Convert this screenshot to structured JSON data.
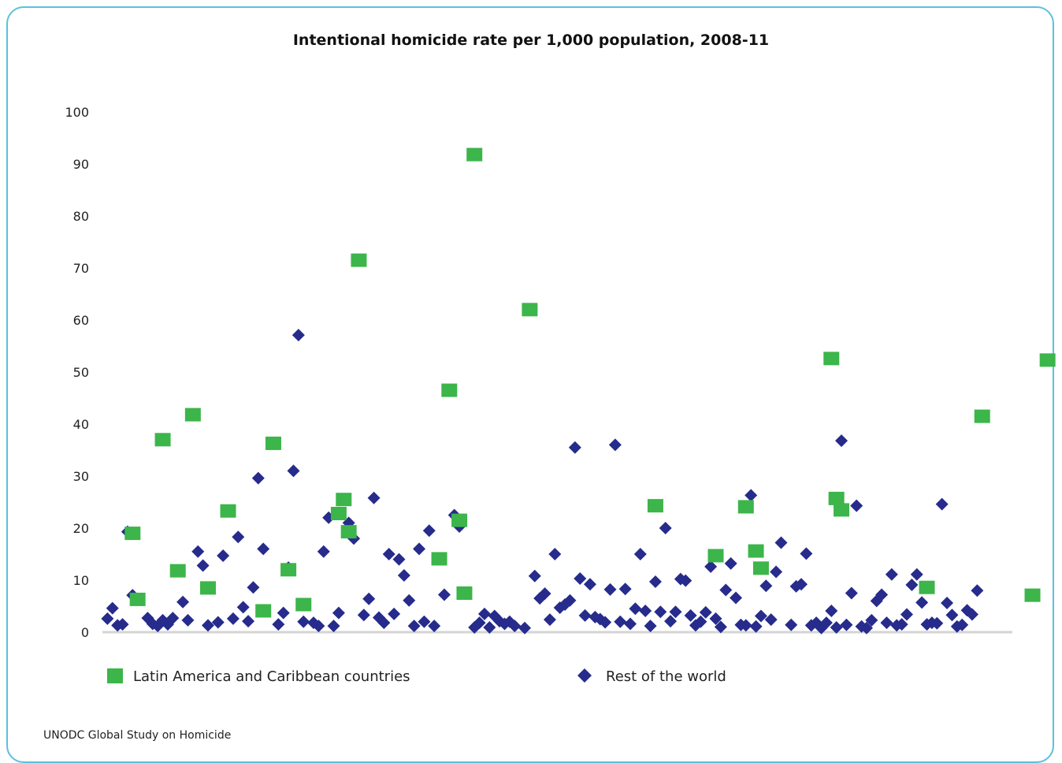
{
  "chart_data": {
    "type": "scatter",
    "title": "Intentional homicide rate per 1,000 population, 2008-11",
    "xlabel": "",
    "ylabel": "",
    "ylim": [
      0,
      100
    ],
    "yticks": [
      "0",
      "10",
      "20",
      "30",
      "40",
      "50",
      "60",
      "70",
      "80",
      "90",
      "100"
    ],
    "grid": false,
    "legend_position": "bottom",
    "series": [
      {
        "name": "Latin America and Caribbean countries",
        "marker": "square",
        "color": "#3cb54a",
        "points": [
          [
            6,
            19
          ],
          [
            7,
            6.3
          ],
          [
            12,
            37
          ],
          [
            15,
            11.8
          ],
          [
            18,
            41.8
          ],
          [
            21,
            8.5
          ],
          [
            25,
            23.3
          ],
          [
            32,
            4.1
          ],
          [
            34,
            36.3
          ],
          [
            37,
            12
          ],
          [
            40,
            5.3
          ],
          [
            47,
            22.8
          ],
          [
            48,
            25.5
          ],
          [
            49,
            19.3
          ],
          [
            51,
            71.5
          ],
          [
            67,
            14.1
          ],
          [
            69,
            46.5
          ],
          [
            71,
            21.5
          ],
          [
            72,
            7.5
          ],
          [
            74,
            91.8
          ],
          [
            85,
            62
          ],
          [
            110,
            24.3
          ],
          [
            122,
            14.7
          ],
          [
            128,
            24.1
          ],
          [
            130,
            15.6
          ],
          [
            131,
            12.3
          ],
          [
            145,
            52.6
          ],
          [
            146,
            25.7
          ],
          [
            147,
            23.5
          ],
          [
            164,
            8.6
          ],
          [
            175,
            41.5
          ],
          [
            185,
            7.1
          ],
          [
            188,
            52.3
          ]
        ]
      },
      {
        "name": "Rest of the world",
        "marker": "diamond",
        "color": "#262b8c",
        "points": [
          [
            1,
            2.6
          ],
          [
            2,
            4.6
          ],
          [
            3,
            1.3
          ],
          [
            4,
            1.5
          ],
          [
            5,
            19.3
          ],
          [
            6,
            7.1
          ],
          [
            9,
            2.7
          ],
          [
            10,
            1.6
          ],
          [
            11,
            1.2
          ],
          [
            12,
            2.3
          ],
          [
            13,
            1.5
          ],
          [
            14,
            2.7
          ],
          [
            16,
            5.8
          ],
          [
            17,
            2.3
          ],
          [
            19,
            15.5
          ],
          [
            20,
            12.8
          ],
          [
            21,
            1.3
          ],
          [
            23,
            1.9
          ],
          [
            24,
            14.7
          ],
          [
            26,
            2.6
          ],
          [
            27,
            18.3
          ],
          [
            28,
            4.8
          ],
          [
            29,
            2.1
          ],
          [
            30,
            8.6
          ],
          [
            31,
            29.6
          ],
          [
            32,
            16
          ],
          [
            35,
            1.5
          ],
          [
            36,
            3.7
          ],
          [
            37,
            12.4
          ],
          [
            38,
            31
          ],
          [
            39,
            57.1
          ],
          [
            40,
            2
          ],
          [
            42,
            1.8
          ],
          [
            43,
            1.2
          ],
          [
            44,
            15.5
          ],
          [
            45,
            22
          ],
          [
            46,
            1.2
          ],
          [
            47,
            3.7
          ],
          [
            49,
            21
          ],
          [
            50,
            18
          ],
          [
            52,
            3.3
          ],
          [
            53,
            6.4
          ],
          [
            54,
            25.8
          ],
          [
            55,
            2.8
          ],
          [
            56,
            1.8
          ],
          [
            57,
            15
          ],
          [
            58,
            3.5
          ],
          [
            59,
            14
          ],
          [
            60,
            10.9
          ],
          [
            61,
            6.1
          ],
          [
            62,
            1.2
          ],
          [
            63,
            16
          ],
          [
            64,
            2
          ],
          [
            65,
            19.5
          ],
          [
            66,
            1.2
          ],
          [
            68,
            7.2
          ],
          [
            70,
            22.5
          ],
          [
            71,
            20.3
          ],
          [
            74,
            0.9
          ],
          [
            75,
            1.8
          ],
          [
            76,
            3.5
          ],
          [
            77,
            0.9
          ],
          [
            78,
            3.1
          ],
          [
            79,
            2.1
          ],
          [
            80,
            1.6
          ],
          [
            81,
            2
          ],
          [
            82,
            1.2
          ],
          [
            84,
            0.8
          ],
          [
            86,
            10.8
          ],
          [
            87,
            6.5
          ],
          [
            88,
            7.4
          ],
          [
            89,
            2.4
          ],
          [
            90,
            15
          ],
          [
            91,
            4.7
          ],
          [
            92,
            5.3
          ],
          [
            93,
            6.1
          ],
          [
            94,
            35.5
          ],
          [
            95,
            10.3
          ],
          [
            96,
            3.2
          ],
          [
            97,
            9.2
          ],
          [
            98,
            2.9
          ],
          [
            99,
            2.5
          ],
          [
            100,
            1.9
          ],
          [
            101,
            8.2
          ],
          [
            102,
            36
          ],
          [
            103,
            2
          ],
          [
            104,
            8.3
          ],
          [
            105,
            1.6
          ],
          [
            106,
            4.5
          ],
          [
            107,
            15
          ],
          [
            108,
            4.1
          ],
          [
            109,
            1.2
          ],
          [
            110,
            9.7
          ],
          [
            111,
            3.9
          ],
          [
            112,
            20
          ],
          [
            113,
            2.1
          ],
          [
            114,
            3.9
          ],
          [
            115,
            10.2
          ],
          [
            116,
            9.9
          ],
          [
            117,
            3.2
          ],
          [
            118,
            1.3
          ],
          [
            119,
            2
          ],
          [
            120,
            3.8
          ],
          [
            121,
            12.6
          ],
          [
            122,
            2.6
          ],
          [
            123,
            1
          ],
          [
            124,
            8.1
          ],
          [
            125,
            13.2
          ],
          [
            126,
            6.6
          ],
          [
            127,
            1.4
          ],
          [
            128,
            1.3
          ],
          [
            129,
            26.3
          ],
          [
            130,
            1.1
          ],
          [
            131,
            3.1
          ],
          [
            132,
            8.9
          ],
          [
            133,
            2.4
          ],
          [
            134,
            11.6
          ],
          [
            135,
            17.2
          ],
          [
            137,
            1.4
          ],
          [
            138,
            8.8
          ],
          [
            139,
            9.2
          ],
          [
            140,
            15.1
          ],
          [
            141,
            1.3
          ],
          [
            142,
            1.8
          ],
          [
            143,
            0.8
          ],
          [
            144,
            1.8
          ],
          [
            145,
            4.1
          ],
          [
            146,
            0.9
          ],
          [
            147,
            36.8
          ],
          [
            148,
            1.4
          ],
          [
            149,
            7.5
          ],
          [
            150,
            24.3
          ],
          [
            151,
            1.1
          ],
          [
            152,
            0.8
          ],
          [
            153,
            2.3
          ],
          [
            154,
            6
          ],
          [
            155,
            7.2
          ],
          [
            156,
            1.8
          ],
          [
            157,
            11.1
          ],
          [
            158,
            1.3
          ],
          [
            159,
            1.5
          ],
          [
            160,
            3.4
          ],
          [
            161,
            9.1
          ],
          [
            162,
            11.1
          ],
          [
            163,
            5.7
          ],
          [
            164,
            1.5
          ],
          [
            165,
            1.8
          ],
          [
            166,
            1.7
          ],
          [
            167,
            24.6
          ],
          [
            168,
            5.6
          ],
          [
            169,
            3.3
          ],
          [
            170,
            1.1
          ],
          [
            171,
            1.4
          ],
          [
            172,
            4.2
          ],
          [
            173,
            3.4
          ],
          [
            174,
            8
          ]
        ]
      }
    ],
    "source": "UNODC Global Study on Homicide"
  }
}
